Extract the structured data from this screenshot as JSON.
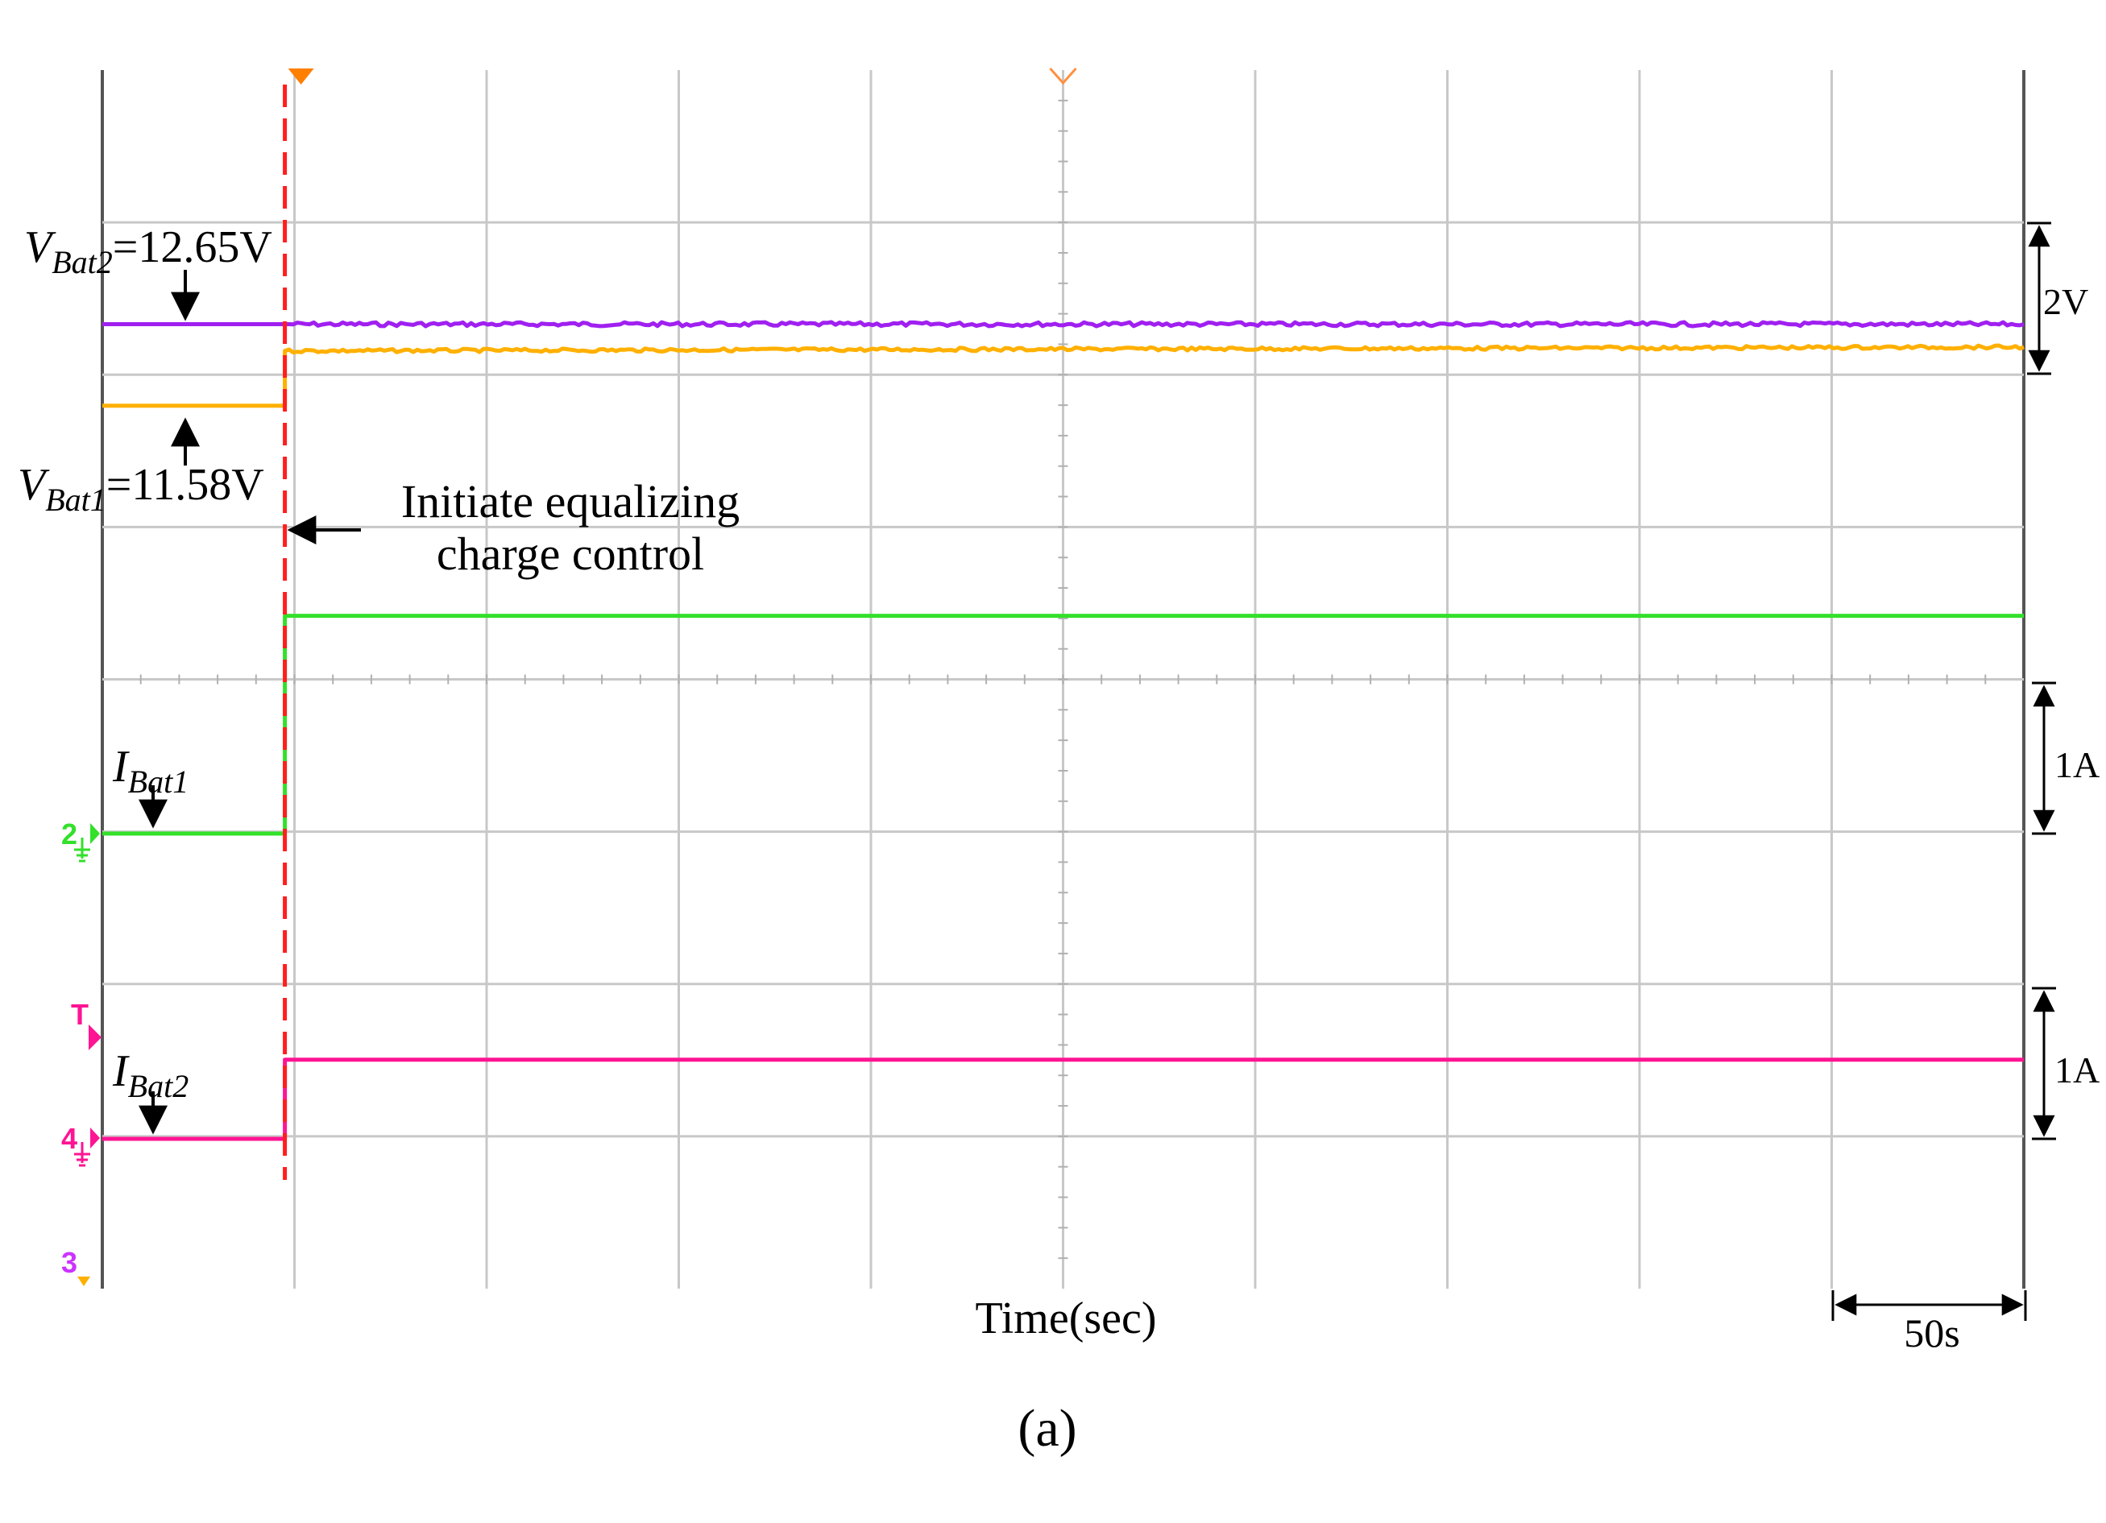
{
  "chart_data": {
    "type": "line",
    "title": "",
    "xlabel": "Time(sec)",
    "x_unit": "s",
    "x_div": 50,
    "xlim": [
      0,
      500
    ],
    "grid": true,
    "event_time_s": 47.5,
    "time_scale_label": "50s",
    "caption": "(a)",
    "annotation": {
      "line1": "Initiate equalizing",
      "line2": "charge control"
    },
    "series": [
      {
        "name": "V_Bat2",
        "label_main": "V",
        "label_sub": "Bat2",
        "value_text": "=12.65V",
        "color": "#a020f0",
        "unit": "V",
        "points": [
          [
            0,
            12.65
          ],
          [
            47.5,
            12.65
          ],
          [
            47.5,
            12.65
          ],
          [
            500,
            12.65
          ]
        ]
      },
      {
        "name": "V_Bat1",
        "label_main": "V",
        "label_sub": "Bat1",
        "value_text": "=11.58V",
        "color": "#ffb000",
        "unit": "V",
        "points": [
          [
            0,
            11.58
          ],
          [
            47.5,
            11.58
          ],
          [
            47.5,
            12.3
          ],
          [
            500,
            12.35
          ]
        ]
      },
      {
        "name": "I_Bat1",
        "label_main": "I",
        "label_sub": "Bat1",
        "color": "#33e02a",
        "unit": "A",
        "points": [
          [
            0,
            0
          ],
          [
            47.5,
            0
          ],
          [
            47.5,
            1.43
          ],
          [
            500,
            1.43
          ]
        ]
      },
      {
        "name": "I_Bat2",
        "label_main": "I",
        "label_sub": "Bat2",
        "color": "#ff1493",
        "unit": "A",
        "points": [
          [
            0,
            0
          ],
          [
            47.5,
            0
          ],
          [
            47.5,
            0.52
          ],
          [
            500,
            0.52
          ]
        ]
      }
    ],
    "scale_bars": [
      {
        "label": "2V"
      },
      {
        "label": "1A"
      },
      {
        "label": "1A"
      }
    ],
    "channel_markers": [
      {
        "label": "2",
        "color": "#33e02a"
      },
      {
        "label": "T",
        "color": "#ff1493"
      },
      {
        "label": "4",
        "color": "#ff1493"
      },
      {
        "label": "3",
        "color": "#cc33ff"
      }
    ]
  }
}
